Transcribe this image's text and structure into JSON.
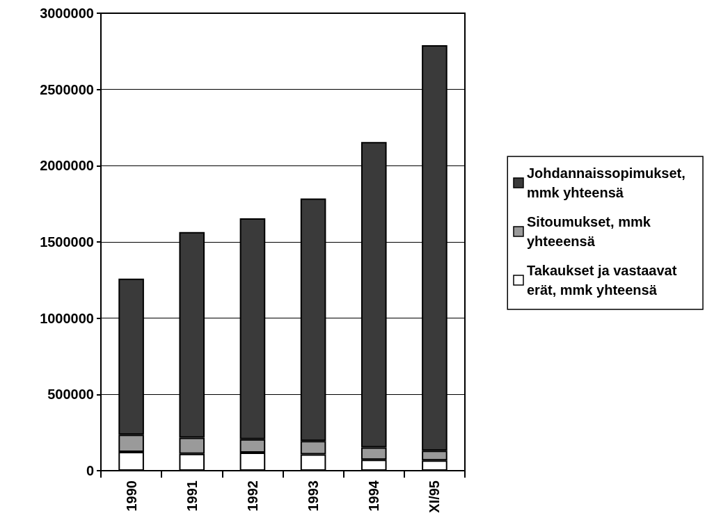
{
  "chart_data": {
    "type": "bar",
    "stacked": true,
    "categories": [
      "1990",
      "1991",
      "1992",
      "1993",
      "1994",
      "XI/95"
    ],
    "series": [
      {
        "name": "Takaukset ja vastaavat erät, mmk yhteensä",
        "color": "#ffffff",
        "values": [
          123000,
          110000,
          119000,
          107000,
          72000,
          67000
        ]
      },
      {
        "name": "Sitoumukset, mmk yhteeensä",
        "color": "#9a9a9a",
        "values": [
          113000,
          106000,
          87000,
          88000,
          81000,
          64000
        ]
      },
      {
        "name": "Johdannaissopimukset, mmk yhteensä",
        "color": "#3a3a3a",
        "values": [
          1024000,
          1349000,
          1449000,
          1590000,
          2002000,
          2659000
        ]
      }
    ],
    "ylim": [
      0,
      3000000
    ],
    "yticks": [
      0,
      500000,
      1000000,
      1500000,
      2000000,
      2500000,
      3000000
    ],
    "grid": "y",
    "legend": "right"
  }
}
